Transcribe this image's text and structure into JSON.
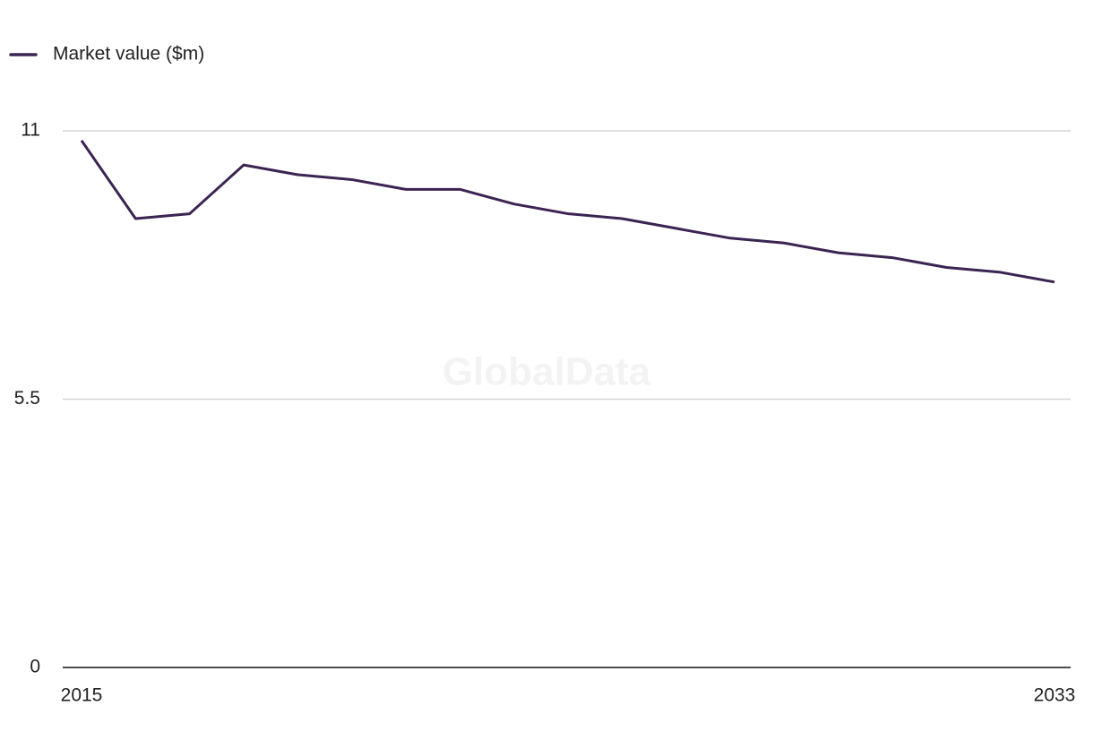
{
  "chart_data": {
    "type": "line",
    "watermark": "GlobalData",
    "x": [
      2015,
      2016,
      2017,
      2018,
      2019,
      2020,
      2021,
      2022,
      2023,
      2024,
      2025,
      2026,
      2027,
      2028,
      2029,
      2030,
      2031,
      2032,
      2033
    ],
    "series": [
      {
        "name": "Market value ($m)",
        "color": "#3b2452",
        "values": [
          10.8,
          9.2,
          9.3,
          10.3,
          10.1,
          10.0,
          9.8,
          9.8,
          9.5,
          9.3,
          9.2,
          9.0,
          8.8,
          8.7,
          8.5,
          8.4,
          8.2,
          8.1,
          7.9
        ]
      }
    ],
    "xlim": [
      2015,
      2033
    ],
    "xticks": [
      2015,
      2033
    ],
    "ylim": [
      0,
      11
    ],
    "yticks": [
      0,
      5.5,
      11
    ],
    "grid": true,
    "legend": "top-left"
  }
}
